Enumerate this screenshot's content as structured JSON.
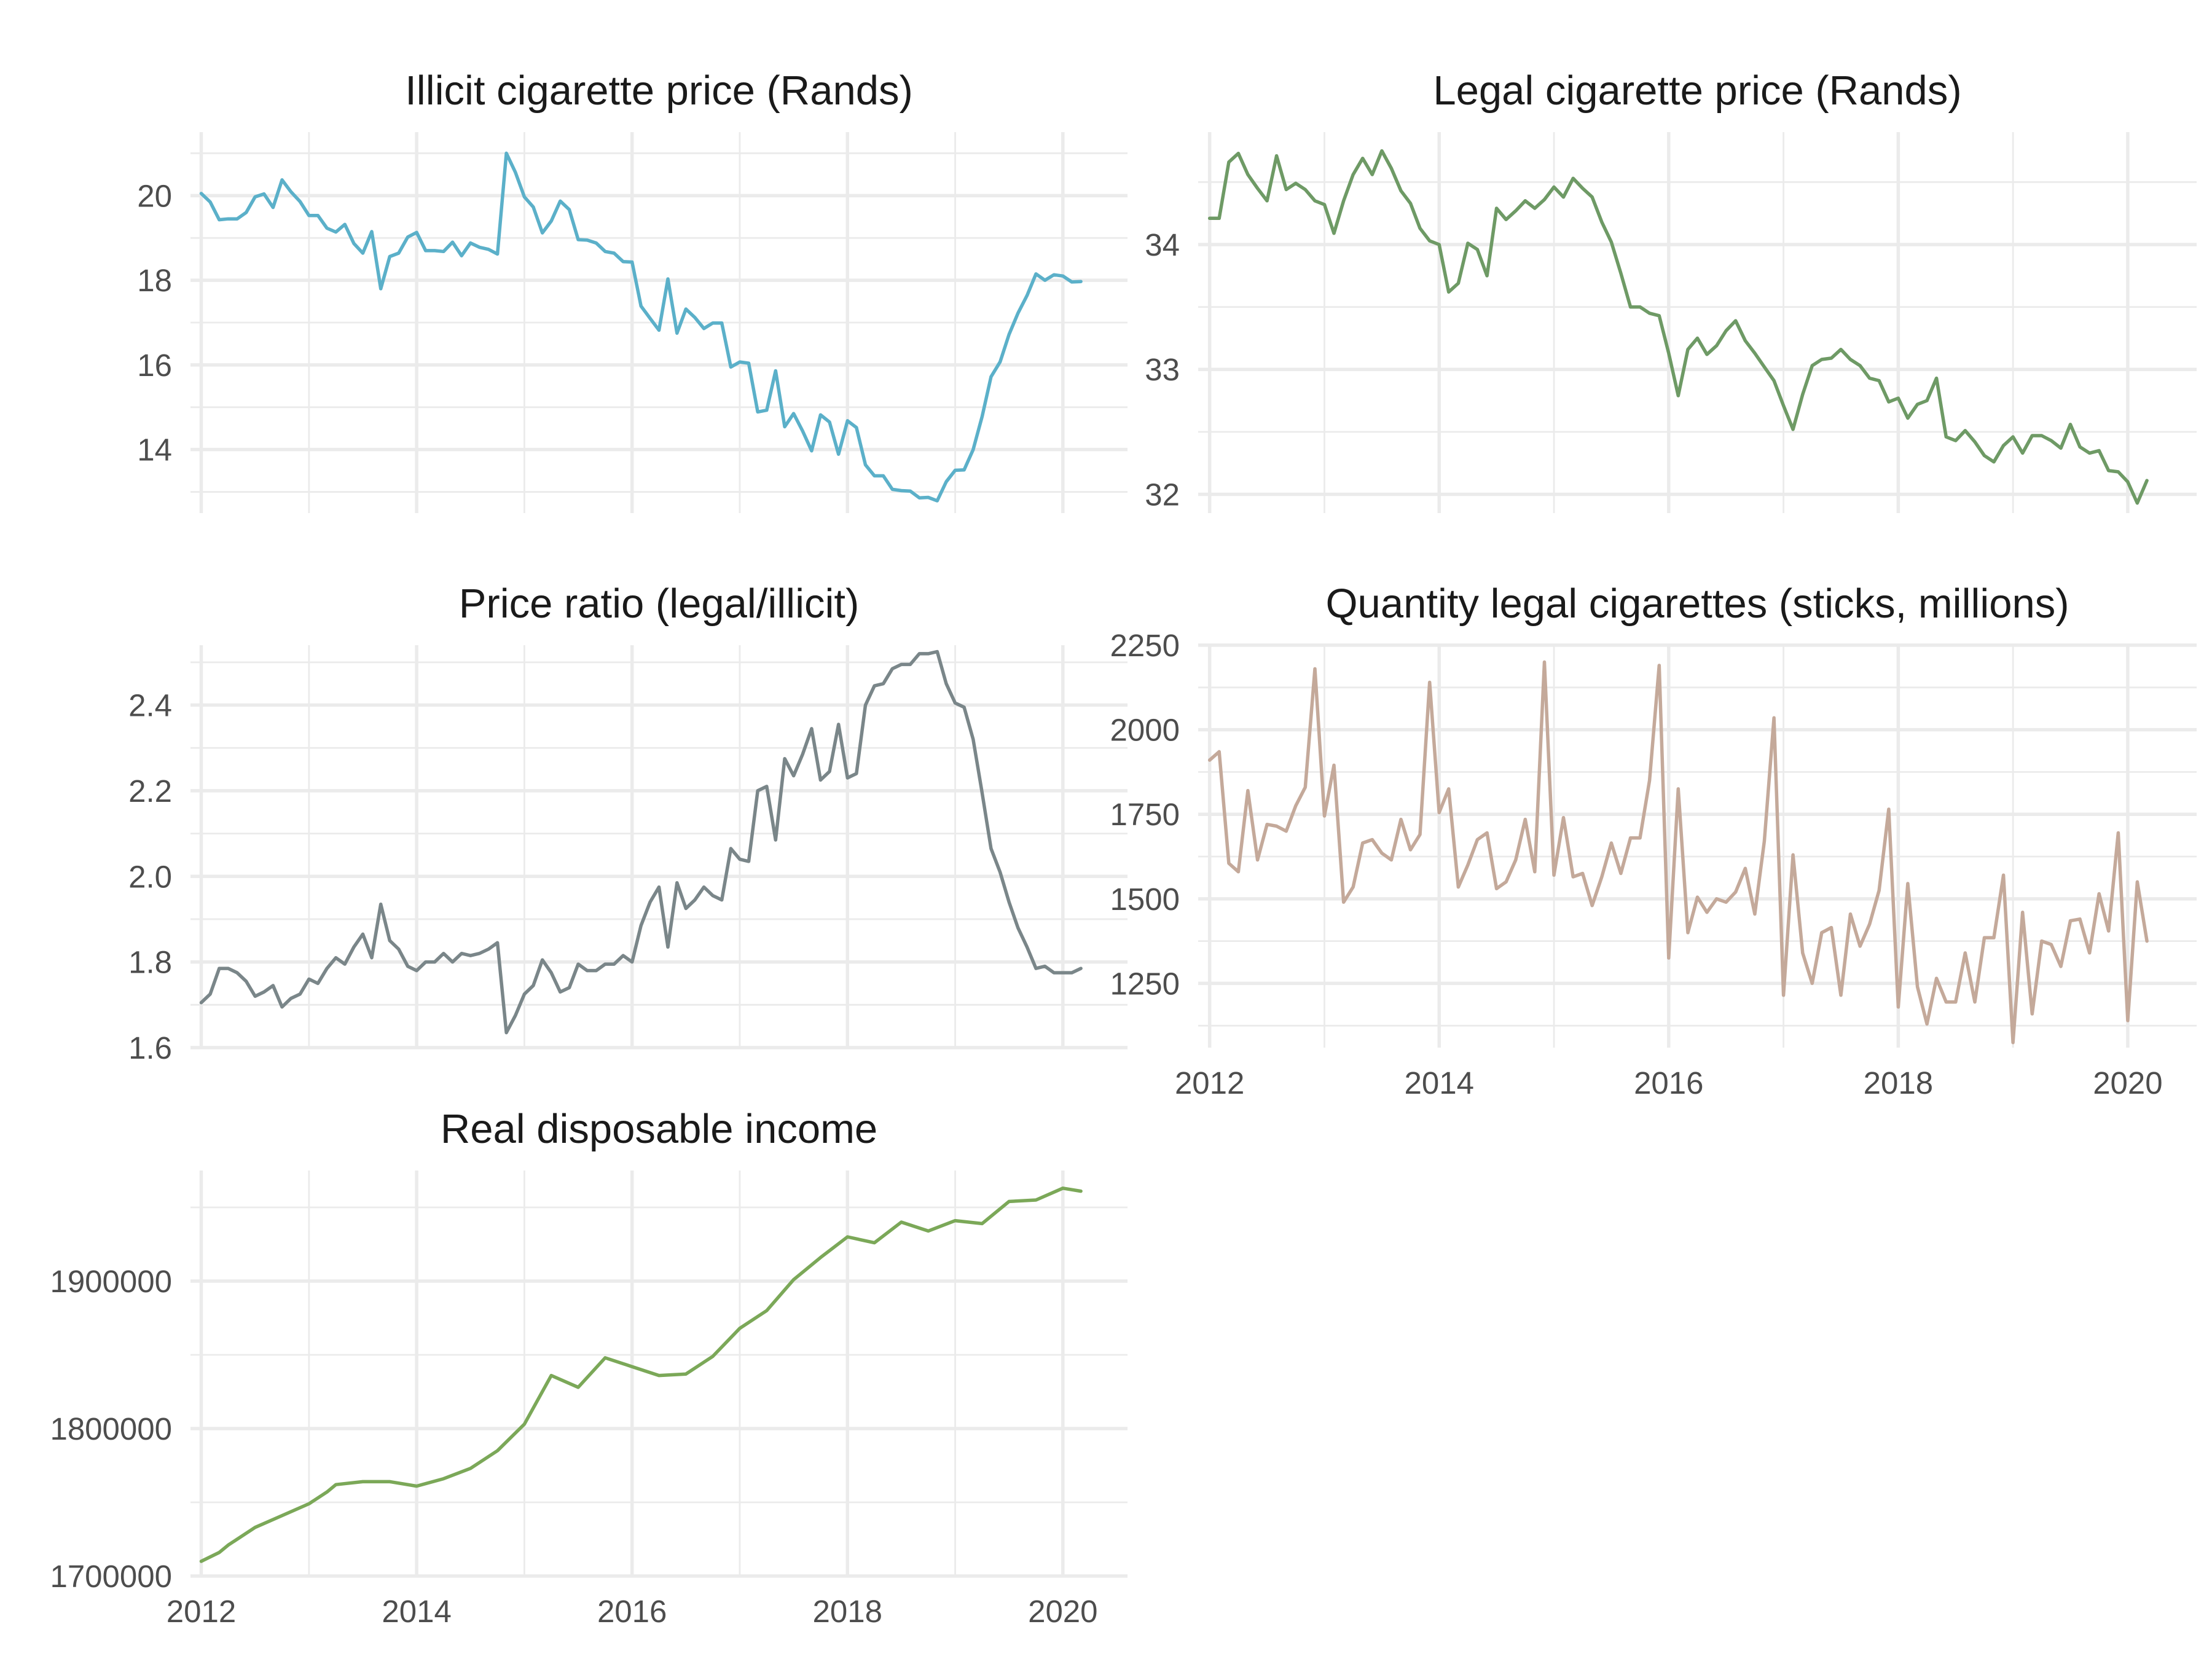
{
  "chart_data": [
    {
      "type": "line",
      "title": "Illicit cigarette price (Rands)",
      "color": "#5bb0c9",
      "xlim": [
        2011.9,
        2020.6
      ],
      "ylim": [
        12.5,
        21.5
      ],
      "xticks_shown": false,
      "xticks": [
        2012,
        2014,
        2016,
        2018,
        2020
      ],
      "yticks": [
        14,
        16,
        18,
        20
      ],
      "ytick_labels": [
        "14",
        "16",
        "18",
        "20"
      ],
      "minor_yticks": [
        13,
        15,
        17,
        19,
        21
      ],
      "x": [
        2012.0,
        2012.083,
        2012.167,
        2012.25,
        2012.333,
        2012.417,
        2012.5,
        2012.583,
        2012.667,
        2012.75,
        2012.833,
        2012.917,
        2013.0,
        2013.083,
        2013.167,
        2013.25,
        2013.333,
        2013.417,
        2013.5,
        2013.583,
        2013.667,
        2013.75,
        2013.833,
        2013.917,
        2014.0,
        2014.083,
        2014.167,
        2014.25,
        2014.333,
        2014.417,
        2014.5,
        2014.583,
        2014.667,
        2014.75,
        2014.833,
        2014.917,
        2015.0,
        2015.083,
        2015.167,
        2015.25,
        2015.333,
        2015.417,
        2015.5,
        2015.583,
        2015.667,
        2015.75,
        2015.833,
        2015.917,
        2016.0,
        2016.083,
        2016.167,
        2016.25,
        2016.333,
        2016.417,
        2016.5,
        2016.583,
        2016.667,
        2016.75,
        2016.833,
        2016.917,
        2017.0,
        2017.083,
        2017.167,
        2017.25,
        2017.333,
        2017.417,
        2017.5,
        2017.583,
        2017.667,
        2017.75,
        2017.833,
        2017.917,
        2018.0,
        2018.083,
        2018.167,
        2018.25,
        2018.333,
        2018.417,
        2018.5,
        2018.583,
        2018.667,
        2018.75,
        2018.833,
        2018.917,
        2019.0,
        2019.083,
        2019.167,
        2019.25,
        2019.333,
        2019.417,
        2019.5,
        2019.583,
        2019.667,
        2019.75,
        2019.833,
        2019.917,
        2020.0,
        2020.083,
        2020.167
      ],
      "y": [
        20.05,
        19.85,
        19.43,
        19.45,
        19.45,
        19.6,
        19.97,
        20.04,
        19.72,
        20.37,
        20.09,
        19.86,
        19.53,
        19.53,
        19.23,
        19.14,
        19.32,
        18.87,
        18.64,
        19.15,
        17.8,
        18.56,
        18.64,
        19.02,
        19.13,
        18.7,
        18.7,
        18.68,
        18.9,
        18.58,
        18.88,
        18.78,
        18.73,
        18.62,
        21.0,
        20.55,
        19.97,
        19.73,
        19.12,
        19.4,
        19.87,
        19.67,
        18.96,
        18.95,
        18.88,
        18.68,
        18.64,
        18.44,
        18.43,
        17.39,
        17.1,
        16.82,
        18.03,
        16.75,
        17.32,
        17.12,
        16.86,
        16.99,
        16.99,
        15.95,
        16.07,
        16.04,
        14.89,
        14.93,
        15.86,
        14.54,
        14.85,
        14.44,
        13.97,
        14.82,
        14.65,
        13.89,
        14.68,
        14.52,
        13.64,
        13.38,
        13.38,
        13.06,
        13.03,
        13.02,
        12.86,
        12.87,
        12.79,
        13.24,
        13.51,
        13.52,
        14.0,
        14.78,
        15.72,
        16.07,
        16.72,
        17.22,
        17.64,
        18.15,
        18.0,
        18.13,
        18.1,
        17.96,
        17.97
      ]
    },
    {
      "type": "line",
      "title": "Legal cigarette price (Rands)",
      "color": "#6e9a65",
      "xlim": [
        2011.9,
        2020.6
      ],
      "ylim": [
        31.85,
        34.9
      ],
      "xticks_shown": false,
      "xticks": [
        2012,
        2014,
        2016,
        2018,
        2020
      ],
      "yticks": [
        32,
        33,
        34
      ],
      "ytick_labels": [
        "32",
        "33",
        "34"
      ],
      "minor_yticks": [
        32.5,
        33.5,
        34.5
      ],
      "x": [
        2012.0,
        2012.083,
        2012.167,
        2012.25,
        2012.333,
        2012.417,
        2012.5,
        2012.583,
        2012.667,
        2012.75,
        2012.833,
        2012.917,
        2013.0,
        2013.083,
        2013.167,
        2013.25,
        2013.333,
        2013.417,
        2013.5,
        2013.583,
        2013.667,
        2013.75,
        2013.833,
        2013.917,
        2014.0,
        2014.083,
        2014.167,
        2014.25,
        2014.333,
        2014.417,
        2014.5,
        2014.583,
        2014.667,
        2014.75,
        2014.833,
        2014.917,
        2015.0,
        2015.083,
        2015.167,
        2015.25,
        2015.333,
        2015.417,
        2015.5,
        2015.583,
        2015.667,
        2015.75,
        2015.833,
        2015.917,
        2016.0,
        2016.083,
        2016.167,
        2016.25,
        2016.333,
        2016.417,
        2016.5,
        2016.583,
        2016.667,
        2016.75,
        2016.833,
        2016.917,
        2017.0,
        2017.083,
        2017.167,
        2017.25,
        2017.333,
        2017.417,
        2017.5,
        2017.583,
        2017.667,
        2017.75,
        2017.833,
        2017.917,
        2018.0,
        2018.083,
        2018.167,
        2018.25,
        2018.333,
        2018.417,
        2018.5,
        2018.583,
        2018.667,
        2018.75,
        2018.833,
        2018.917,
        2019.0,
        2019.083,
        2019.167,
        2019.25,
        2019.333,
        2019.417,
        2019.5,
        2019.583,
        2019.667,
        2019.75,
        2019.833,
        2019.917,
        2020.0,
        2020.083,
        2020.167
      ],
      "y": [
        34.21,
        34.21,
        34.66,
        34.73,
        34.56,
        34.45,
        34.35,
        34.71,
        34.44,
        34.49,
        34.44,
        34.35,
        34.32,
        34.09,
        34.35,
        34.56,
        34.69,
        34.56,
        34.75,
        34.61,
        34.43,
        34.33,
        34.13,
        34.03,
        34.0,
        33.62,
        33.69,
        34.01,
        33.96,
        33.75,
        34.29,
        34.2,
        34.27,
        34.35,
        34.29,
        34.36,
        34.46,
        34.38,
        34.53,
        34.45,
        34.38,
        34.18,
        34.02,
        33.77,
        33.5,
        33.5,
        33.45,
        33.43,
        33.13,
        32.79,
        33.16,
        33.25,
        33.12,
        33.19,
        33.31,
        33.39,
        33.23,
        33.13,
        33.02,
        32.91,
        32.71,
        32.52,
        32.8,
        33.03,
        33.08,
        33.09,
        33.16,
        33.08,
        33.03,
        32.93,
        32.91,
        32.74,
        32.77,
        32.61,
        32.72,
        32.75,
        32.93,
        32.46,
        32.43,
        32.51,
        32.42,
        32.31,
        32.26,
        32.39,
        32.46,
        32.33,
        32.47,
        32.47,
        32.43,
        32.37,
        32.56,
        32.38,
        32.33,
        32.35,
        32.19,
        32.18,
        32.1,
        31.93,
        32.11
      ]
    },
    {
      "type": "line",
      "title": "Price ratio (legal/illicit)",
      "color": "#7a8689",
      "xlim": [
        2011.9,
        2020.6
      ],
      "ylim": [
        1.6,
        2.54
      ],
      "xticks_shown": false,
      "xticks": [
        2012,
        2014,
        2016,
        2018,
        2020
      ],
      "yticks": [
        1.6,
        1.8,
        2.0,
        2.2,
        2.4
      ],
      "ytick_labels": [
        "1.6",
        "1.8",
        "2.0",
        "2.2",
        "2.4"
      ],
      "minor_yticks": [
        1.7,
        1.9,
        2.1,
        2.3,
        2.5
      ],
      "x": [
        2012.0,
        2012.083,
        2012.167,
        2012.25,
        2012.333,
        2012.417,
        2012.5,
        2012.583,
        2012.667,
        2012.75,
        2012.833,
        2012.917,
        2013.0,
        2013.083,
        2013.167,
        2013.25,
        2013.333,
        2013.417,
        2013.5,
        2013.583,
        2013.667,
        2013.75,
        2013.833,
        2013.917,
        2014.0,
        2014.083,
        2014.167,
        2014.25,
        2014.333,
        2014.417,
        2014.5,
        2014.583,
        2014.667,
        2014.75,
        2014.833,
        2014.917,
        2015.0,
        2015.083,
        2015.167,
        2015.25,
        2015.333,
        2015.417,
        2015.5,
        2015.583,
        2015.667,
        2015.75,
        2015.833,
        2015.917,
        2016.0,
        2016.083,
        2016.167,
        2016.25,
        2016.333,
        2016.417,
        2016.5,
        2016.583,
        2016.667,
        2016.75,
        2016.833,
        2016.917,
        2017.0,
        2017.083,
        2017.167,
        2017.25,
        2017.333,
        2017.417,
        2017.5,
        2017.583,
        2017.667,
        2017.75,
        2017.833,
        2017.917,
        2018.0,
        2018.083,
        2018.167,
        2018.25,
        2018.333,
        2018.417,
        2018.5,
        2018.583,
        2018.667,
        2018.75,
        2018.833,
        2018.917,
        2019.0,
        2019.083,
        2019.167,
        2019.25,
        2019.333,
        2019.417,
        2019.5,
        2019.583,
        2019.667,
        2019.75,
        2019.833,
        2019.917,
        2020.0,
        2020.083,
        2020.167
      ],
      "y": [
        1.705,
        1.725,
        1.785,
        1.785,
        1.775,
        1.755,
        1.72,
        1.73,
        1.745,
        1.695,
        1.715,
        1.725,
        1.76,
        1.75,
        1.785,
        1.81,
        1.795,
        1.835,
        1.865,
        1.81,
        1.935,
        1.85,
        1.83,
        1.79,
        1.78,
        1.8,
        1.8,
        1.82,
        1.8,
        1.82,
        1.815,
        1.82,
        1.83,
        1.845,
        1.635,
        1.675,
        1.725,
        1.745,
        1.805,
        1.775,
        1.73,
        1.74,
        1.795,
        1.78,
        1.78,
        1.795,
        1.795,
        1.815,
        1.8,
        1.885,
        1.94,
        1.975,
        1.835,
        1.985,
        1.925,
        1.945,
        1.975,
        1.955,
        1.945,
        2.065,
        2.04,
        2.035,
        2.2,
        2.21,
        2.085,
        2.275,
        2.235,
        2.285,
        2.345,
        2.225,
        2.245,
        2.355,
        2.23,
        2.24,
        2.4,
        2.445,
        2.45,
        2.485,
        2.495,
        2.495,
        2.52,
        2.52,
        2.525,
        2.45,
        2.405,
        2.395,
        2.32,
        2.195,
        2.065,
        2.01,
        1.94,
        1.88,
        1.835,
        1.785,
        1.79,
        1.775,
        1.775,
        1.775,
        1.785
      ]
    },
    {
      "type": "line",
      "title": "Quantity legal cigarettes (sticks, millions)",
      "color": "#c4a99a",
      "xlim": [
        2011.9,
        2020.6
      ],
      "ylim": [
        1060,
        2250
      ],
      "xticks_shown": true,
      "xticks": [
        2012,
        2014,
        2016,
        2018,
        2020
      ],
      "xtick_labels": [
        "2012",
        "2014",
        "2016",
        "2018",
        "2020"
      ],
      "minor_xticks": [
        2013,
        2015,
        2017,
        2019
      ],
      "yticks": [
        1250,
        1500,
        1750,
        2000,
        2250
      ],
      "ytick_labels": [
        "1250",
        "1500",
        "1750",
        "2000",
        "2250"
      ],
      "minor_yticks": [
        1125,
        1375,
        1625,
        1875,
        2125
      ],
      "x": [
        2012.0,
        2012.083,
        2012.167,
        2012.25,
        2012.333,
        2012.417,
        2012.5,
        2012.583,
        2012.667,
        2012.75,
        2012.833,
        2012.917,
        2013.0,
        2013.083,
        2013.167,
        2013.25,
        2013.333,
        2013.417,
        2013.5,
        2013.583,
        2013.667,
        2013.75,
        2013.833,
        2013.917,
        2014.0,
        2014.083,
        2014.167,
        2014.25,
        2014.333,
        2014.417,
        2014.5,
        2014.583,
        2014.667,
        2014.75,
        2014.833,
        2014.917,
        2015.0,
        2015.083,
        2015.167,
        2015.25,
        2015.333,
        2015.417,
        2015.5,
        2015.583,
        2015.667,
        2015.75,
        2015.833,
        2015.917,
        2016.0,
        2016.083,
        2016.167,
        2016.25,
        2016.333,
        2016.417,
        2016.5,
        2016.583,
        2016.667,
        2016.75,
        2016.833,
        2016.917,
        2017.0,
        2017.083,
        2017.167,
        2017.25,
        2017.333,
        2017.417,
        2017.5,
        2017.583,
        2017.667,
        2017.75,
        2017.833,
        2017.917,
        2018.0,
        2018.083,
        2018.167,
        2018.25,
        2018.333,
        2018.417,
        2018.5,
        2018.583,
        2018.667,
        2018.75,
        2018.833,
        2018.917,
        2019.0,
        2019.083,
        2019.167,
        2019.25,
        2019.333,
        2019.417,
        2019.5,
        2019.583,
        2019.667,
        2019.75,
        2019.833,
        2019.917,
        2020.0,
        2020.083,
        2020.167
      ],
      "y": [
        1910,
        1935,
        1605,
        1580,
        1820,
        1615,
        1720,
        1715,
        1700,
        1775,
        1830,
        2180,
        1745,
        1895,
        1490,
        1535,
        1665,
        1675,
        1635,
        1615,
        1735,
        1645,
        1690,
        2140,
        1755,
        1825,
        1535,
        1600,
        1675,
        1695,
        1530,
        1550,
        1615,
        1735,
        1580,
        2200,
        1570,
        1740,
        1565,
        1575,
        1480,
        1565,
        1665,
        1575,
        1680,
        1680,
        1850,
        2190,
        1325,
        1825,
        1400,
        1505,
        1460,
        1500,
        1490,
        1520,
        1590,
        1455,
        1670,
        2035,
        1215,
        1630,
        1340,
        1250,
        1400,
        1415,
        1215,
        1455,
        1360,
        1425,
        1525,
        1765,
        1180,
        1545,
        1240,
        1130,
        1265,
        1195,
        1195,
        1340,
        1195,
        1385,
        1385,
        1570,
        1075,
        1460,
        1160,
        1375,
        1365,
        1300,
        1435,
        1440,
        1340,
        1515,
        1405,
        1695,
        1140,
        1550,
        1375
      ]
    },
    {
      "type": "line",
      "title": "Real disposable income",
      "color": "#7ba858",
      "xlim": [
        2011.9,
        2020.6
      ],
      "ylim": [
        1700000,
        1975000
      ],
      "xticks_shown": true,
      "xticks": [
        2012,
        2014,
        2016,
        2018,
        2020
      ],
      "xtick_labels": [
        "2012",
        "2014",
        "2016",
        "2018",
        "2020"
      ],
      "minor_xticks": [
        2013,
        2015,
        2017,
        2019
      ],
      "yticks": [
        1700000,
        1800000,
        1900000
      ],
      "ytick_labels": [
        "1700000",
        "1800000",
        "1900000"
      ],
      "minor_yticks": [
        1750000,
        1850000,
        1950000
      ],
      "x": [
        2012.0,
        2012.167,
        2012.25,
        2012.5,
        2012.75,
        2013.0,
        2013.167,
        2013.25,
        2013.5,
        2013.75,
        2014.0,
        2014.25,
        2014.5,
        2014.75,
        2015.0,
        2015.25,
        2015.5,
        2015.75,
        2016.0,
        2016.25,
        2016.5,
        2016.75,
        2017.0,
        2017.25,
        2017.5,
        2017.75,
        2018.0,
        2018.25,
        2018.5,
        2018.75,
        2019.0,
        2019.25,
        2019.5,
        2019.75,
        2020.0,
        2020.167
      ],
      "y": [
        1710000,
        1716000,
        1721000,
        1733000,
        1741000,
        1749000,
        1757000,
        1762000,
        1764000,
        1764000,
        1761000,
        1766000,
        1773000,
        1785000,
        1803000,
        1836000,
        1828000,
        1848000,
        1842000,
        1836000,
        1837000,
        1849000,
        1868000,
        1880000,
        1901000,
        1916000,
        1930000,
        1926000,
        1940000,
        1934000,
        1941000,
        1939000,
        1954000,
        1955000,
        1963000,
        1961000
      ]
    }
  ]
}
